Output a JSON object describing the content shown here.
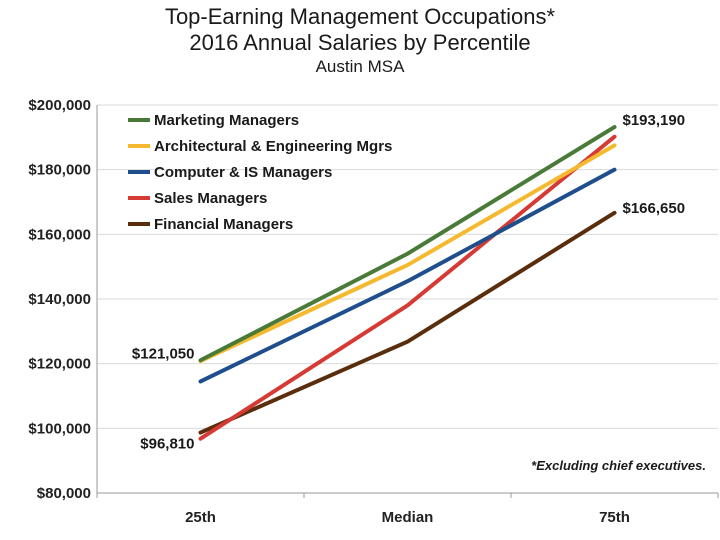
{
  "chart_data": {
    "type": "line",
    "title": "Top-Earning Management Occupations*",
    "title2": "2016 Annual Salaries by Percentile",
    "subtitle": "Austin MSA",
    "categories": [
      "25th",
      "Median",
      "75th"
    ],
    "ylim": [
      80000,
      200000
    ],
    "yticks": [
      80000,
      100000,
      120000,
      140000,
      160000,
      180000,
      200000
    ],
    "ytick_labels": [
      "$80,000",
      "$100,000",
      "$120,000",
      "$140,000",
      "$160,000",
      "$180,000",
      "$200,000"
    ],
    "grid": true,
    "legend_position": "top-left",
    "series": [
      {
        "name": "Marketing Managers",
        "color": "#4a7a38",
        "values": [
          121050,
          154000,
          193190
        ]
      },
      {
        "name": "Architectural & Engineering Mgrs",
        "color": "#f5b930",
        "values": [
          120800,
          150500,
          187500
        ]
      },
      {
        "name": "Computer & IS Managers",
        "color": "#1f4e8c",
        "values": [
          114500,
          145500,
          180000
        ]
      },
      {
        "name": "Sales Managers",
        "color": "#d63a34",
        "values": [
          96810,
          138000,
          190200
        ]
      },
      {
        "name": "Financial Managers",
        "color": "#5a2d0c",
        "values": [
          98700,
          126800,
          166650
        ]
      }
    ],
    "data_labels": [
      {
        "text": "$193,190",
        "series": 0,
        "point": 2
      },
      {
        "text": "$166,650",
        "series": 4,
        "point": 2
      },
      {
        "text": "$121,050",
        "series": 0,
        "point": 0
      },
      {
        "text": "$96,810",
        "series": 3,
        "point": 0
      }
    ],
    "note": "*Excluding chief executives."
  }
}
